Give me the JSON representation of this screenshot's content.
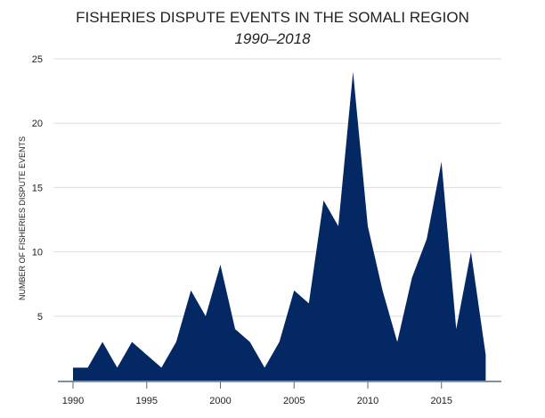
{
  "chart_data": {
    "type": "area",
    "title": "FISHERIES DISPUTE EVENTS IN THE SOMALI REGION",
    "subtitle": "1990–2018",
    "xlabel": "",
    "ylabel": "NUMBER OF FISHERIES DISPUTE  EVENTS",
    "x": [
      1990,
      1991,
      1992,
      1993,
      1994,
      1995,
      1996,
      1997,
      1998,
      1999,
      2000,
      2001,
      2002,
      2003,
      2004,
      2005,
      2006,
      2007,
      2008,
      2009,
      2010,
      2011,
      2012,
      2013,
      2014,
      2015,
      2016,
      2017,
      2018
    ],
    "values": [
      1,
      1,
      3,
      1,
      3,
      2,
      1,
      3,
      7,
      5,
      9,
      4,
      3,
      1,
      3,
      7,
      6,
      14,
      12,
      24,
      12,
      7,
      3,
      8,
      11,
      17,
      4,
      10,
      2
    ],
    "xlim": [
      1990,
      2019
    ],
    "ylim": [
      0,
      25
    ],
    "xticks": [
      "1990",
      "1995",
      "2000",
      "2005",
      "2010",
      "2015"
    ],
    "yticks": [
      "5",
      "10",
      "15",
      "20",
      "25"
    ],
    "grid": true,
    "colors": {
      "fill": "#032863",
      "grid": "#dddddd",
      "axis": "#5a6a7a"
    }
  }
}
